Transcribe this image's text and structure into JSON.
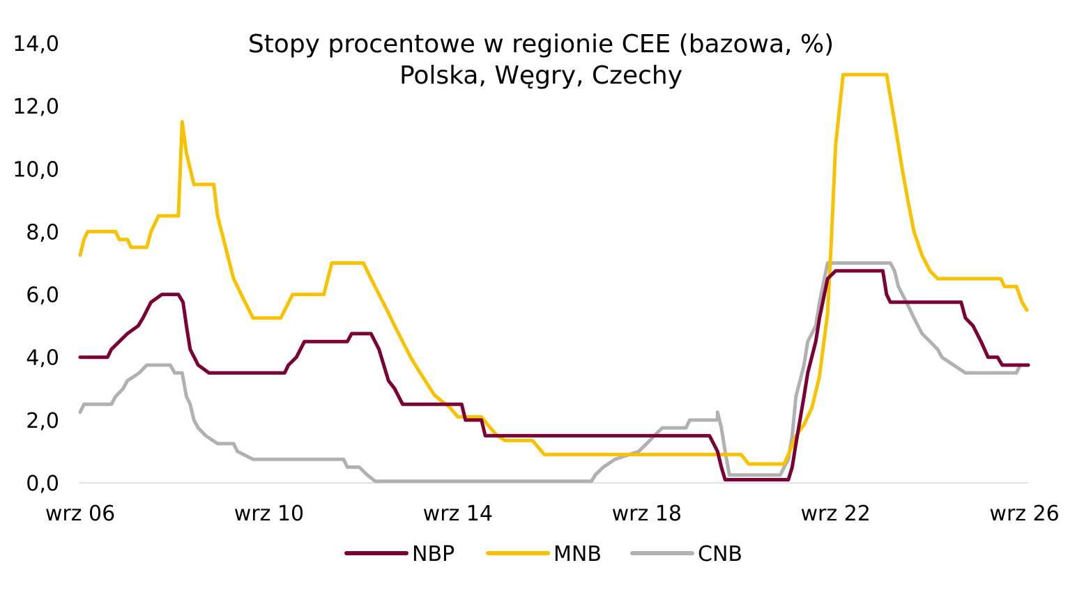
{
  "chart_data": {
    "type": "line",
    "title": "Stopy procentowe w regionie CEE (bazowa, %)",
    "subtitle": "Polska, Węgry, Czechy",
    "xlabel": "",
    "ylabel": "",
    "x_range": [
      2006.67,
      2026.75
    ],
    "ylim": [
      0,
      14
    ],
    "y_ticks": [
      {
        "value": 0,
        "label": "0,0"
      },
      {
        "value": 2,
        "label": "2,0"
      },
      {
        "value": 4,
        "label": "4,0"
      },
      {
        "value": 6,
        "label": "6,0"
      },
      {
        "value": 8,
        "label": "8,0"
      },
      {
        "value": 10,
        "label": "10,0"
      },
      {
        "value": 12,
        "label": "12,0"
      },
      {
        "value": 14,
        "label": "14,0"
      }
    ],
    "x_ticks": [
      {
        "value": 2006.67,
        "label": "wrz 06"
      },
      {
        "value": 2010.67,
        "label": "wrz 10"
      },
      {
        "value": 2014.67,
        "label": "wrz 14"
      },
      {
        "value": 2018.67,
        "label": "wrz 18"
      },
      {
        "value": 2022.67,
        "label": "wrz 22"
      },
      {
        "value": 2026.67,
        "label": "wrz 26"
      }
    ],
    "grid": false,
    "legend_position": "bottom",
    "series": [
      {
        "name": "NBP",
        "color": "#7a0035",
        "points": [
          [
            2006.67,
            4.0
          ],
          [
            2007.25,
            4.0
          ],
          [
            2007.33,
            4.25
          ],
          [
            2007.5,
            4.5
          ],
          [
            2007.67,
            4.75
          ],
          [
            2007.9,
            5.0
          ],
          [
            2008.0,
            5.25
          ],
          [
            2008.17,
            5.75
          ],
          [
            2008.4,
            6.0
          ],
          [
            2008.75,
            6.0
          ],
          [
            2008.85,
            5.75
          ],
          [
            2008.92,
            5.0
          ],
          [
            2009.0,
            4.25
          ],
          [
            2009.17,
            3.75
          ],
          [
            2009.4,
            3.5
          ],
          [
            2011.0,
            3.5
          ],
          [
            2011.08,
            3.75
          ],
          [
            2011.25,
            4.0
          ],
          [
            2011.42,
            4.5
          ],
          [
            2012.33,
            4.5
          ],
          [
            2012.42,
            4.75
          ],
          [
            2012.83,
            4.75
          ],
          [
            2013.0,
            4.25
          ],
          [
            2013.1,
            3.75
          ],
          [
            2013.2,
            3.25
          ],
          [
            2013.33,
            3.0
          ],
          [
            2013.5,
            2.5
          ],
          [
            2014.75,
            2.5
          ],
          [
            2014.83,
            2.0
          ],
          [
            2015.17,
            2.0
          ],
          [
            2015.25,
            1.5
          ],
          [
            2020.0,
            1.5
          ],
          [
            2020.17,
            1.0
          ],
          [
            2020.25,
            0.5
          ],
          [
            2020.33,
            0.1
          ],
          [
            2021.67,
            0.1
          ],
          [
            2021.75,
            0.5
          ],
          [
            2021.83,
            1.25
          ],
          [
            2022.0,
            2.75
          ],
          [
            2022.08,
            3.5
          ],
          [
            2022.25,
            4.5
          ],
          [
            2022.33,
            5.25
          ],
          [
            2022.5,
            6.5
          ],
          [
            2022.67,
            6.75
          ],
          [
            2023.67,
            6.75
          ],
          [
            2023.75,
            6.0
          ],
          [
            2023.83,
            5.75
          ],
          [
            2025.33,
            5.75
          ],
          [
            2025.42,
            5.25
          ],
          [
            2025.58,
            5.0
          ],
          [
            2025.75,
            4.5
          ],
          [
            2025.9,
            4.0
          ],
          [
            2026.1,
            4.0
          ],
          [
            2026.2,
            3.75
          ],
          [
            2026.75,
            3.75
          ]
        ]
      },
      {
        "name": "MNB",
        "color": "#f9c200",
        "points": [
          [
            2006.67,
            7.25
          ],
          [
            2006.75,
            7.75
          ],
          [
            2006.83,
            8.0
          ],
          [
            2007.42,
            8.0
          ],
          [
            2007.5,
            7.75
          ],
          [
            2007.67,
            7.75
          ],
          [
            2007.75,
            7.5
          ],
          [
            2008.08,
            7.5
          ],
          [
            2008.17,
            8.0
          ],
          [
            2008.33,
            8.5
          ],
          [
            2008.75,
            8.5
          ],
          [
            2008.83,
            11.5
          ],
          [
            2008.92,
            10.5
          ],
          [
            2009.08,
            9.5
          ],
          [
            2009.5,
            9.5
          ],
          [
            2009.58,
            8.5
          ],
          [
            2009.75,
            7.5
          ],
          [
            2009.92,
            6.5
          ],
          [
            2010.08,
            6.0
          ],
          [
            2010.33,
            5.25
          ],
          [
            2010.92,
            5.25
          ],
          [
            2011.17,
            6.0
          ],
          [
            2011.83,
            6.0
          ],
          [
            2012.0,
            7.0
          ],
          [
            2012.67,
            7.0
          ],
          [
            2012.83,
            6.5
          ],
          [
            2013.0,
            6.0
          ],
          [
            2013.17,
            5.5
          ],
          [
            2013.33,
            5.0
          ],
          [
            2013.5,
            4.5
          ],
          [
            2013.67,
            4.0
          ],
          [
            2013.83,
            3.6
          ],
          [
            2014.0,
            3.2
          ],
          [
            2014.17,
            2.8
          ],
          [
            2014.33,
            2.6
          ],
          [
            2014.5,
            2.4
          ],
          [
            2014.67,
            2.1
          ],
          [
            2015.17,
            2.1
          ],
          [
            2015.33,
            1.8
          ],
          [
            2015.5,
            1.5
          ],
          [
            2015.67,
            1.35
          ],
          [
            2016.25,
            1.35
          ],
          [
            2016.5,
            0.9
          ],
          [
            2020.67,
            0.9
          ],
          [
            2020.83,
            0.6
          ],
          [
            2021.58,
            0.6
          ],
          [
            2021.67,
            0.9
          ],
          [
            2021.83,
            1.5
          ],
          [
            2022.0,
            1.85
          ],
          [
            2022.17,
            2.4
          ],
          [
            2022.33,
            3.4
          ],
          [
            2022.5,
            5.4
          ],
          [
            2022.58,
            7.75
          ],
          [
            2022.67,
            10.75
          ],
          [
            2022.83,
            13.0
          ],
          [
            2023.75,
            13.0
          ],
          [
            2023.92,
            11.5
          ],
          [
            2024.08,
            10.0
          ],
          [
            2024.2,
            9.0
          ],
          [
            2024.33,
            8.0
          ],
          [
            2024.5,
            7.25
          ],
          [
            2024.67,
            6.75
          ],
          [
            2024.83,
            6.5
          ],
          [
            2025.92,
            6.5
          ],
          [
            2026.17,
            6.5
          ],
          [
            2026.25,
            6.25
          ],
          [
            2026.5,
            6.25
          ],
          [
            2026.62,
            5.75
          ],
          [
            2026.72,
            5.5
          ]
        ]
      },
      {
        "name": "CNB",
        "color": "#b1b1b1",
        "points": [
          [
            2006.67,
            2.25
          ],
          [
            2006.75,
            2.5
          ],
          [
            2007.33,
            2.5
          ],
          [
            2007.42,
            2.75
          ],
          [
            2007.58,
            3.0
          ],
          [
            2007.67,
            3.25
          ],
          [
            2007.92,
            3.5
          ],
          [
            2008.08,
            3.75
          ],
          [
            2008.58,
            3.75
          ],
          [
            2008.67,
            3.5
          ],
          [
            2008.83,
            3.5
          ],
          [
            2008.92,
            2.75
          ],
          [
            2009.0,
            2.5
          ],
          [
            2009.08,
            2.0
          ],
          [
            2009.17,
            1.75
          ],
          [
            2009.33,
            1.5
          ],
          [
            2009.58,
            1.25
          ],
          [
            2009.92,
            1.25
          ],
          [
            2010.0,
            1.0
          ],
          [
            2010.33,
            0.75
          ],
          [
            2012.25,
            0.75
          ],
          [
            2012.33,
            0.5
          ],
          [
            2012.58,
            0.5
          ],
          [
            2012.75,
            0.25
          ],
          [
            2012.92,
            0.05
          ],
          [
            2017.5,
            0.05
          ],
          [
            2017.58,
            0.25
          ],
          [
            2017.75,
            0.5
          ],
          [
            2018.0,
            0.75
          ],
          [
            2018.5,
            1.0
          ],
          [
            2018.67,
            1.25
          ],
          [
            2018.83,
            1.5
          ],
          [
            2019.0,
            1.75
          ],
          [
            2019.5,
            1.75
          ],
          [
            2019.58,
            2.0
          ],
          [
            2020.17,
            2.0
          ],
          [
            2020.17,
            2.25
          ],
          [
            2020.25,
            1.75
          ],
          [
            2020.33,
            1.0
          ],
          [
            2020.42,
            0.25
          ],
          [
            2021.5,
            0.25
          ],
          [
            2021.58,
            0.5
          ],
          [
            2021.67,
            0.75
          ],
          [
            2021.75,
            1.5
          ],
          [
            2021.83,
            2.75
          ],
          [
            2022.0,
            3.75
          ],
          [
            2022.08,
            4.5
          ],
          [
            2022.25,
            5.0
          ],
          [
            2022.33,
            5.75
          ],
          [
            2022.5,
            7.0
          ],
          [
            2023.83,
            7.0
          ],
          [
            2023.92,
            6.75
          ],
          [
            2024.0,
            6.25
          ],
          [
            2024.17,
            5.75
          ],
          [
            2024.33,
            5.25
          ],
          [
            2024.5,
            4.75
          ],
          [
            2024.67,
            4.5
          ],
          [
            2024.83,
            4.25
          ],
          [
            2024.92,
            4.0
          ],
          [
            2025.17,
            3.75
          ],
          [
            2025.42,
            3.5
          ],
          [
            2026.5,
            3.5
          ],
          [
            2026.58,
            3.75
          ],
          [
            2026.75,
            3.75
          ]
        ]
      }
    ]
  }
}
